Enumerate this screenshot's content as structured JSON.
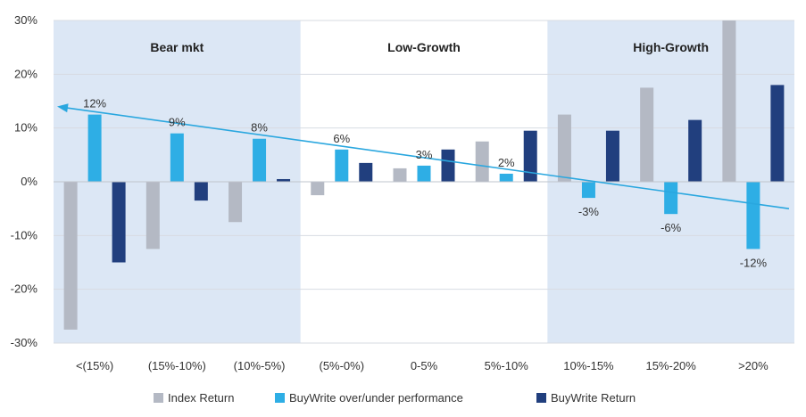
{
  "chart_data": {
    "type": "bar",
    "categories": [
      "<(15%)",
      "(15%-10%)",
      "(10%-5%)",
      "(5%-0%)",
      "0-5%",
      "5%-10%",
      "10%-15%",
      "15%-20%",
      ">20%"
    ],
    "series": [
      {
        "name": "Index Return",
        "values": [
          -27.5,
          -12.5,
          -7.5,
          -2.5,
          2.5,
          7.5,
          12.5,
          17.5,
          30
        ],
        "color": "#b4b9c4"
      },
      {
        "name": "BuyWrite over/under performance",
        "values": [
          12.5,
          9,
          8,
          6,
          3,
          1.5,
          -3,
          -6,
          -12.5
        ],
        "color": "#2eaee5"
      },
      {
        "name": "BuyWrite Return",
        "values": [
          -15,
          -3.5,
          0.5,
          3.5,
          6,
          9.5,
          9.5,
          11.5,
          18
        ],
        "color": "#213f7e"
      }
    ],
    "data_labels": [
      "12%",
      "9%",
      "8%",
      "6%",
      "3%",
      "2%",
      "-3%",
      "-6%",
      "-12%"
    ],
    "regions": [
      {
        "label": "Bear mkt",
        "from_index": 0,
        "to_index": 2,
        "shaded": true
      },
      {
        "label": "Low-Growth",
        "from_index": 3,
        "to_index": 5,
        "shaded": false
      },
      {
        "label": "High-Growth",
        "from_index": 6,
        "to_index": 8,
        "shaded": true
      }
    ],
    "trendline": {
      "start": 14,
      "end": -5,
      "color": "#2aa7df",
      "arrow_at": "start"
    },
    "y_ticks": [
      "30%",
      "20%",
      "10%",
      "0%",
      "-10%",
      "-20%",
      "-30%"
    ],
    "ylim": [
      -30,
      30
    ],
    "grid": true,
    "legend_position": "bottom",
    "region_color": "#dce7f5"
  }
}
